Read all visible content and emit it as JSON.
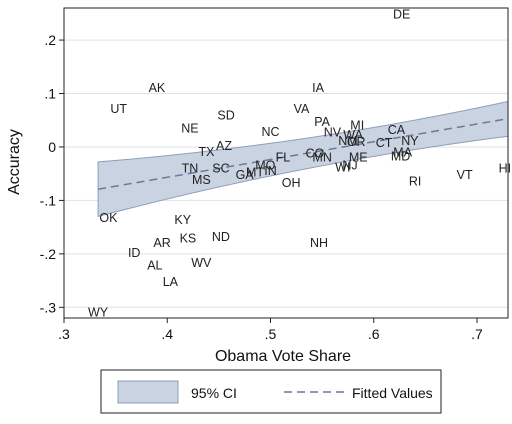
{
  "chart_data": {
    "type": "scatter",
    "xlabel": "Obama Vote Share",
    "ylabel": "Accuracy",
    "xlim": [
      0.3,
      0.73
    ],
    "ylim": [
      -0.32,
      0.26
    ],
    "x_ticks": [
      {
        "value": 0.3,
        "label": ".3"
      },
      {
        "value": 0.4,
        "label": ".4"
      },
      {
        "value": 0.5,
        "label": ".5"
      },
      {
        "value": 0.6,
        "label": ".6"
      },
      {
        "value": 0.7,
        "label": ".7"
      }
    ],
    "y_ticks": [
      {
        "value": 0.2,
        "label": ".2"
      },
      {
        "value": 0.1,
        "label": ".1"
      },
      {
        "value": 0.0,
        "label": "0"
      },
      {
        "value": -0.1,
        "label": "-.1"
      },
      {
        "value": -0.2,
        "label": "-.2"
      },
      {
        "value": -0.3,
        "label": "-.3"
      }
    ],
    "grid": "horizontal",
    "fitted_values": {
      "x": [
        0.333,
        0.73
      ],
      "y": [
        -0.079,
        0.053
      ]
    },
    "ci": {
      "x": [
        0.333,
        0.73
      ],
      "upper": [
        -0.028,
        0.085
      ],
      "lower": [
        -0.13,
        0.02
      ]
    },
    "points": [
      {
        "label": "DE",
        "x": 0.627,
        "y": 0.248
      },
      {
        "label": "AK",
        "x": 0.39,
        "y": 0.11
      },
      {
        "label": "UT",
        "x": 0.353,
        "y": 0.071
      },
      {
        "label": "IA",
        "x": 0.546,
        "y": 0.11
      },
      {
        "label": "SD",
        "x": 0.457,
        "y": 0.059
      },
      {
        "label": "VA",
        "x": 0.53,
        "y": 0.071
      },
      {
        "label": "PA",
        "x": 0.55,
        "y": 0.047
      },
      {
        "label": "NE",
        "x": 0.422,
        "y": 0.035
      },
      {
        "label": "NC",
        "x": 0.5,
        "y": 0.028
      },
      {
        "label": "MI",
        "x": 0.584,
        "y": 0.04
      },
      {
        "label": "NV",
        "x": 0.56,
        "y": 0.027
      },
      {
        "label": "WA",
        "x": 0.58,
        "y": 0.022
      },
      {
        "label": "CA",
        "x": 0.622,
        "y": 0.032
      },
      {
        "label": "CT",
        "x": 0.61,
        "y": 0.007
      },
      {
        "label": "NY",
        "x": 0.635,
        "y": 0.011
      },
      {
        "label": "NM",
        "x": 0.575,
        "y": 0.011
      },
      {
        "label": "OR",
        "x": 0.583,
        "y": 0.009
      },
      {
        "label": "AZ",
        "x": 0.455,
        "y": 0.002
      },
      {
        "label": "TX",
        "x": 0.438,
        "y": -0.009
      },
      {
        "label": "FL",
        "x": 0.512,
        "y": -0.02
      },
      {
        "label": "CO",
        "x": 0.543,
        "y": -0.012
      },
      {
        "label": "MN",
        "x": 0.55,
        "y": -0.02
      },
      {
        "label": "ME",
        "x": 0.585,
        "y": -0.02
      },
      {
        "label": "MA",
        "x": 0.628,
        "y": -0.01
      },
      {
        "label": "MD",
        "x": 0.626,
        "y": -0.018
      },
      {
        "label": "TN",
        "x": 0.422,
        "y": -0.04
      },
      {
        "label": "SC",
        "x": 0.452,
        "y": -0.04
      },
      {
        "label": "MO",
        "x": 0.495,
        "y": -0.035
      },
      {
        "label": "MT",
        "x": 0.485,
        "y": -0.048
      },
      {
        "label": "IN",
        "x": 0.5,
        "y": -0.045
      },
      {
        "label": "GA",
        "x": 0.475,
        "y": -0.052
      },
      {
        "label": "WI",
        "x": 0.57,
        "y": -0.038
      },
      {
        "label": "NJ",
        "x": 0.577,
        "y": -0.035
      },
      {
        "label": "MS",
        "x": 0.433,
        "y": -0.062
      },
      {
        "label": "OH",
        "x": 0.52,
        "y": -0.067
      },
      {
        "label": "RI",
        "x": 0.64,
        "y": -0.065
      },
      {
        "label": "VT",
        "x": 0.688,
        "y": -0.052
      },
      {
        "label": "HI",
        "x": 0.727,
        "y": -0.04
      },
      {
        "label": "OK",
        "x": 0.343,
        "y": -0.133
      },
      {
        "label": "KY",
        "x": 0.415,
        "y": -0.137
      },
      {
        "label": "KS",
        "x": 0.42,
        "y": -0.171
      },
      {
        "label": "ND",
        "x": 0.452,
        "y": -0.168
      },
      {
        "label": "AR",
        "x": 0.395,
        "y": -0.18
      },
      {
        "label": "NH",
        "x": 0.547,
        "y": -0.18
      },
      {
        "label": "ID",
        "x": 0.368,
        "y": -0.198
      },
      {
        "label": "WV",
        "x": 0.433,
        "y": -0.217
      },
      {
        "label": "AL",
        "x": 0.388,
        "y": -0.222
      },
      {
        "label": "LA",
        "x": 0.403,
        "y": -0.253
      },
      {
        "label": "WY",
        "x": 0.333,
        "y": -0.31
      }
    ],
    "legend": {
      "position": "bottom",
      "items": [
        {
          "label": "95% CI",
          "kind": "band"
        },
        {
          "label": "Fitted Values",
          "kind": "dashed-line"
        }
      ]
    },
    "colors": {
      "band_fill": "#c9d3e2",
      "band_stroke": "#8e9fba",
      "fit_line": "#6a7a98",
      "grid": "#dde2ea",
      "frame": "#222222"
    }
  }
}
